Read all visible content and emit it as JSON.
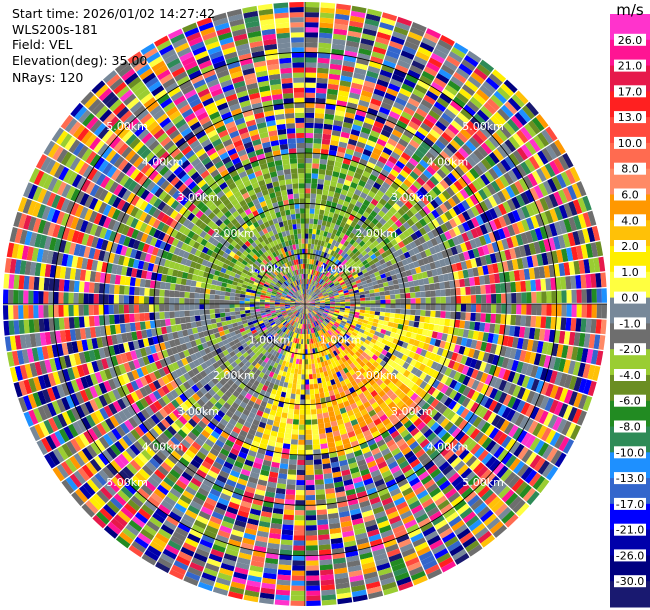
{
  "info": {
    "start_time": "Start time: 2026/01/02 14:27:42",
    "instrument": "WLS200s-181",
    "field": "Field: VEL",
    "elevation": "Elevation(deg): 35.00",
    "nrays": "NRays: 120"
  },
  "chart_data": {
    "type": "ppi",
    "field": "VEL",
    "instrument": "WLS200s-181",
    "start_time": "2026/01/02 14:27:42",
    "elevation_deg": 35.0,
    "n_rays": 120,
    "range_rings_km": [
      1.0,
      2.0,
      3.0,
      4.0,
      5.0
    ],
    "ring_labels": [
      "1.00km",
      "2.00km",
      "3.00km",
      "4.00km",
      "5.00km"
    ],
    "max_range_km": 6.0,
    "colorbar": {
      "unit": "m/s",
      "ticks": [
        "26.0",
        "21.0",
        "17.0",
        "13.0",
        "10.0",
        "8.0",
        "6.0",
        "4.0",
        "2.0",
        "1.0",
        "0.0",
        "-1.0",
        "-2.0",
        "-4.0",
        "-6.0",
        "-8.0",
        "-10.0",
        "-13.0",
        "-17.0",
        "-21.0",
        "-26.0",
        "-30.0"
      ],
      "colors": [
        "#ff33cc",
        "#ff1493",
        "#e6194b",
        "#ff2020",
        "#ff4a3d",
        "#ff6b50",
        "#ff8a65",
        "#ff9800",
        "#ffc107",
        "#ffee00",
        "#ffff40",
        "#778899",
        "#6e6e6e",
        "#9acd32",
        "#6b8e23",
        "#228b22",
        "#2e8b57",
        "#1e90ff",
        "#3366cc",
        "#0000ff",
        "#0000aa",
        "#000080",
        "#191970"
      ]
    },
    "patterns": {
      "inner_range_km": [
        1.0,
        3.0
      ],
      "positive_sector_deg": [
        95,
        200
      ],
      "negative_sector_deg": [
        280,
        60
      ]
    }
  }
}
